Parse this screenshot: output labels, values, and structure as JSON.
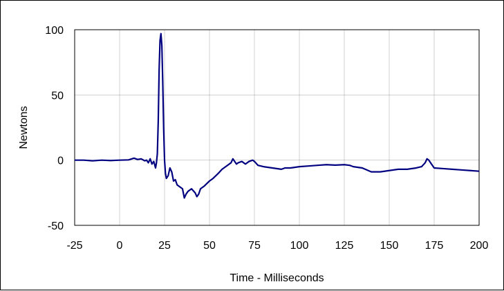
{
  "chart_data": {
    "type": "line",
    "title": "",
    "xlabel": "Time - Milliseconds",
    "ylabel": "Newtons",
    "xlim": [
      -25,
      200
    ],
    "ylim": [
      -50,
      100
    ],
    "x_ticks": [
      -25,
      0,
      25,
      50,
      75,
      100,
      125,
      150,
      175,
      200
    ],
    "y_ticks": [
      -50,
      0,
      50,
      100
    ],
    "grid": true,
    "legend": "none",
    "series": [
      {
        "color": "#000080",
        "points": [
          [
            -25,
            0
          ],
          [
            -20,
            0
          ],
          [
            -15,
            -0.5
          ],
          [
            -10,
            0
          ],
          [
            -5,
            -0.3
          ],
          [
            0,
            0
          ],
          [
            5,
            0.2
          ],
          [
            8,
            1.5
          ],
          [
            10,
            0.5
          ],
          [
            12,
            1
          ],
          [
            14,
            -0.5
          ],
          [
            15,
            0
          ],
          [
            16,
            -2
          ],
          [
            17,
            1
          ],
          [
            18,
            -3
          ],
          [
            19,
            -1
          ],
          [
            20,
            -6
          ],
          [
            20.5,
            -2
          ],
          [
            21,
            5
          ],
          [
            21.5,
            30
          ],
          [
            22,
            70
          ],
          [
            22.5,
            92
          ],
          [
            23,
            97
          ],
          [
            23.5,
            88
          ],
          [
            24,
            60
          ],
          [
            24.5,
            25
          ],
          [
            25,
            0
          ],
          [
            25.5,
            -10
          ],
          [
            26,
            -14
          ],
          [
            27,
            -12
          ],
          [
            28,
            -6
          ],
          [
            29,
            -9
          ],
          [
            30,
            -16
          ],
          [
            31,
            -15
          ],
          [
            32,
            -19
          ],
          [
            33,
            -20
          ],
          [
            34,
            -21
          ],
          [
            35,
            -22
          ],
          [
            36,
            -29
          ],
          [
            37,
            -26
          ],
          [
            38,
            -24
          ],
          [
            40,
            -22
          ],
          [
            42,
            -25
          ],
          [
            43,
            -28
          ],
          [
            44,
            -26
          ],
          [
            45,
            -22
          ],
          [
            47,
            -20
          ],
          [
            50,
            -16
          ],
          [
            52,
            -14
          ],
          [
            55,
            -10
          ],
          [
            57,
            -7
          ],
          [
            60,
            -4
          ],
          [
            62,
            -2
          ],
          [
            63,
            1
          ],
          [
            64,
            -1
          ],
          [
            65,
            -3
          ],
          [
            66,
            -2
          ],
          [
            68,
            -1
          ],
          [
            70,
            -3
          ],
          [
            72,
            -1
          ],
          [
            74,
            0
          ],
          [
            75,
            -1
          ],
          [
            77,
            -4
          ],
          [
            80,
            -5
          ],
          [
            85,
            -6
          ],
          [
            90,
            -7
          ],
          [
            92,
            -6
          ],
          [
            95,
            -6
          ],
          [
            100,
            -5
          ],
          [
            105,
            -4.5
          ],
          [
            110,
            -4
          ],
          [
            115,
            -3.5
          ],
          [
            120,
            -3.8
          ],
          [
            125,
            -3.5
          ],
          [
            128,
            -4
          ],
          [
            130,
            -5
          ],
          [
            135,
            -6
          ],
          [
            140,
            -9
          ],
          [
            145,
            -9
          ],
          [
            150,
            -8
          ],
          [
            155,
            -7
          ],
          [
            160,
            -7
          ],
          [
            165,
            -6
          ],
          [
            168,
            -5
          ],
          [
            170,
            -2
          ],
          [
            171,
            1
          ],
          [
            172,
            0
          ],
          [
            173,
            -2
          ],
          [
            175,
            -6
          ],
          [
            180,
            -6.5
          ],
          [
            185,
            -7
          ],
          [
            190,
            -7.5
          ],
          [
            195,
            -8
          ],
          [
            200,
            -8.5
          ]
        ]
      }
    ]
  }
}
